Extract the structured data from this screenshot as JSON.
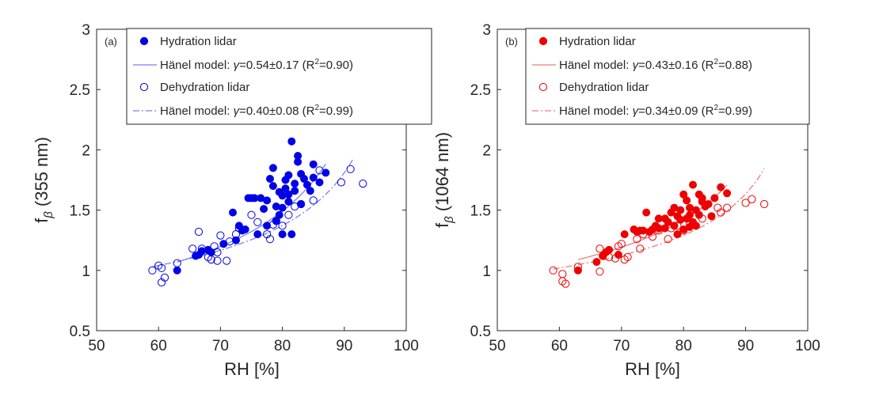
{
  "chart_data": [
    {
      "type": "scatter",
      "panel_label": "(a)",
      "color": "#0000e6",
      "line_color": "#7b7ef5",
      "xlabel": "RH [%]",
      "ylabel": "f",
      "ylabel_sub": "β",
      "ylabel_suffix": "(355 nm)",
      "xlim": [
        50,
        100
      ],
      "ylim": [
        0.5,
        3
      ],
      "xticks": [
        "50",
        "60",
        "70",
        "80",
        "90",
        "100"
      ],
      "yticks": [
        "0.5",
        "1",
        "1.5",
        "2",
        "2.5",
        "3"
      ],
      "legend_position": "top",
      "legend": {
        "hyd": "Hydration lidar",
        "hyd_fit_pre": "Hänel model: ",
        "hyd_fit_sym": "γ",
        "hyd_fit_post": "=0.54±0.17 (R",
        "hyd_fit_sup": "2",
        "hyd_fit_end": "=0.90)",
        "deh": "Dehydration lidar",
        "deh_fit_pre": "Hänel model: ",
        "deh_fit_sym": "γ",
        "deh_fit_post": "=0.40±0.08 (R",
        "deh_fit_sup": "2",
        "deh_fit_end": "=0.99)"
      },
      "series": [
        {
          "name": "Hydration lidar",
          "marker": "filled",
          "points": [
            [
              63,
              1.0
            ],
            [
              66,
              1.12
            ],
            [
              66.5,
              1.13
            ],
            [
              67,
              1.16
            ],
            [
              68,
              1.17
            ],
            [
              68.5,
              1.15
            ],
            [
              70.5,
              1.22
            ],
            [
              72,
              1.48
            ],
            [
              72.5,
              1.25
            ],
            [
              73,
              1.37
            ],
            [
              73.5,
              1.33
            ],
            [
              74,
              1.34
            ],
            [
              74.5,
              1.6
            ],
            [
              75.5,
              1.6
            ],
            [
              76,
              1.3
            ],
            [
              76.5,
              1.6
            ],
            [
              77,
              1.51
            ],
            [
              77.5,
              1.58
            ],
            [
              77.5,
              1.37
            ],
            [
              78,
              1.76
            ],
            [
              78.5,
              1.85
            ],
            [
              78.5,
              1.7
            ],
            [
              79,
              1.53
            ],
            [
              79,
              1.41
            ],
            [
              79.5,
              1.65
            ],
            [
              79.5,
              1.46
            ],
            [
              80,
              1.62
            ],
            [
              80,
              1.52
            ],
            [
              80,
              1.3
            ],
            [
              80.5,
              1.75
            ],
            [
              80.5,
              1.68
            ],
            [
              81,
              1.79
            ],
            [
              81,
              1.63
            ],
            [
              81,
              1.57
            ],
            [
              81.5,
              2.07
            ],
            [
              81.5,
              1.3
            ],
            [
              82,
              1.72
            ],
            [
              82,
              1.66
            ],
            [
              82.5,
              1.95
            ],
            [
              82.5,
              1.9
            ],
            [
              83,
              1.8
            ],
            [
              83,
              1.55
            ],
            [
              84,
              1.71
            ],
            [
              84.5,
              1.66
            ],
            [
              85,
              1.88
            ],
            [
              85,
              1.77
            ],
            [
              86,
              1.73
            ],
            [
              87,
              1.81
            ],
            [
              75,
              1.6
            ],
            [
              83.5,
              1.76
            ]
          ]
        },
        {
          "name": "Dehydration lidar",
          "marker": "open",
          "points": [
            [
              59,
              1.0
            ],
            [
              60,
              1.04
            ],
            [
              60.5,
              1.02
            ],
            [
              60.5,
              0.9
            ],
            [
              61,
              0.94
            ],
            [
              63,
              1.06
            ],
            [
              65.5,
              1.18
            ],
            [
              66.5,
              1.32
            ],
            [
              67,
              1.18
            ],
            [
              68,
              1.11
            ],
            [
              68.5,
              1.09
            ],
            [
              69,
              1.2
            ],
            [
              69.5,
              1.08
            ],
            [
              69.5,
              1.15
            ],
            [
              70,
              1.29
            ],
            [
              71,
              1.08
            ],
            [
              71.5,
              1.24
            ],
            [
              72.5,
              1.3
            ],
            [
              73,
              1.35
            ],
            [
              75,
              1.46
            ],
            [
              76,
              1.4
            ],
            [
              77.5,
              1.3
            ],
            [
              78,
              1.26
            ],
            [
              78.5,
              1.38
            ],
            [
              79,
              1.41
            ],
            [
              80,
              1.37
            ],
            [
              81,
              1.46
            ],
            [
              82,
              1.53
            ],
            [
              83,
              1.55
            ],
            [
              85,
              1.58
            ],
            [
              86,
              1.83
            ],
            [
              89.5,
              1.73
            ],
            [
              91,
              1.84
            ],
            [
              93,
              1.72
            ]
          ]
        }
      ],
      "fits": [
        {
          "name": "Hänel model hydration",
          "gamma": 0.54,
          "k": 1.12,
          "rh_ref": 66,
          "x_range": [
            63,
            87
          ],
          "style": "solid"
        },
        {
          "name": "Hänel model dehydration",
          "gamma": 0.4,
          "k": 1.04,
          "rh_ref": 60,
          "x_range": [
            59,
            91.5
          ],
          "style": "dashdot"
        }
      ]
    },
    {
      "type": "scatter",
      "panel_label": "(b)",
      "color": "#ee0000",
      "line_color": "#f07a7a",
      "xlabel": "RH [%]",
      "ylabel": "f",
      "ylabel_sub": "β",
      "ylabel_suffix": "(1064 nm)",
      "xlim": [
        50,
        100
      ],
      "ylim": [
        0.5,
        3
      ],
      "xticks": [
        "50",
        "60",
        "70",
        "80",
        "90",
        "100"
      ],
      "yticks": [
        "0.5",
        "1",
        "1.5",
        "2",
        "2.5",
        "3"
      ],
      "legend_position": "top",
      "legend": {
        "hyd": "Hydration lidar",
        "hyd_fit_pre": "Hänel model: ",
        "hyd_fit_sym": "γ",
        "hyd_fit_post": "=0.43±0.16 (R",
        "hyd_fit_sup": "2",
        "hyd_fit_end": "=0.88)",
        "deh": "Dehydration lidar",
        "deh_fit_pre": "Hänel model: ",
        "deh_fit_sym": "γ",
        "deh_fit_post": "=0.34±0.09 (R",
        "deh_fit_sup": "2",
        "deh_fit_end": "=0.99)"
      },
      "series": [
        {
          "name": "Hydration lidar",
          "marker": "filled",
          "points": [
            [
              63,
              1.0
            ],
            [
              66,
              1.07
            ],
            [
              67,
              1.12
            ],
            [
              67.5,
              1.15
            ],
            [
              68,
              1.17
            ],
            [
              69.5,
              1.13
            ],
            [
              70.5,
              1.3
            ],
            [
              72,
              1.34
            ],
            [
              72.5,
              1.32
            ],
            [
              73,
              1.33
            ],
            [
              73.5,
              1.33
            ],
            [
              74,
              1.48
            ],
            [
              74.5,
              1.32
            ],
            [
              75,
              1.34
            ],
            [
              76,
              1.35
            ],
            [
              76,
              1.43
            ],
            [
              77,
              1.35
            ],
            [
              77,
              1.43
            ],
            [
              77.5,
              1.4
            ],
            [
              78,
              1.48
            ],
            [
              78.5,
              1.52
            ],
            [
              78.5,
              1.37
            ],
            [
              79,
              1.45
            ],
            [
              79,
              1.3
            ],
            [
              79.5,
              1.5
            ],
            [
              79.5,
              1.42
            ],
            [
              80,
              1.63
            ],
            [
              80,
              1.34
            ],
            [
              80.5,
              1.58
            ],
            [
              80.5,
              1.43
            ],
            [
              81,
              1.52
            ],
            [
              81,
              1.46
            ],
            [
              81,
              1.36
            ],
            [
              81.5,
              1.71
            ],
            [
              81.5,
              1.4
            ],
            [
              82,
              1.5
            ],
            [
              82,
              1.37
            ],
            [
              82.5,
              1.63
            ],
            [
              82.5,
              1.46
            ],
            [
              83,
              1.6
            ],
            [
              83,
              1.57
            ],
            [
              83.5,
              1.53
            ],
            [
              84,
              1.55
            ],
            [
              84.5,
              1.45
            ],
            [
              85,
              1.6
            ],
            [
              86,
              1.69
            ],
            [
              87,
              1.64
            ],
            [
              75.5,
              1.37
            ]
          ]
        },
        {
          "name": "Dehydration lidar",
          "marker": "open",
          "points": [
            [
              59,
              1.0
            ],
            [
              60.5,
              0.97
            ],
            [
              60.5,
              0.91
            ],
            [
              61,
              0.89
            ],
            [
              63,
              1.03
            ],
            [
              66.5,
              0.99
            ],
            [
              66.5,
              1.18
            ],
            [
              67,
              1.12
            ],
            [
              68,
              1.11
            ],
            [
              69,
              1.1
            ],
            [
              69.5,
              1.2
            ],
            [
              70,
              1.22
            ],
            [
              70.5,
              1.09
            ],
            [
              71,
              1.11
            ],
            [
              72.5,
              1.26
            ],
            [
              73,
              1.18
            ],
            [
              73.5,
              1.3
            ],
            [
              75,
              1.28
            ],
            [
              76,
              1.33
            ],
            [
              77.5,
              1.26
            ],
            [
              78,
              1.35
            ],
            [
              79,
              1.37
            ],
            [
              80,
              1.33
            ],
            [
              81,
              1.38
            ],
            [
              83,
              1.43
            ],
            [
              85.5,
              1.52
            ],
            [
              86,
              1.48
            ],
            [
              87,
              1.52
            ],
            [
              90,
              1.56
            ],
            [
              91,
              1.59
            ],
            [
              93,
              1.55
            ]
          ]
        }
      ],
      "fits": [
        {
          "name": "Hänel model hydration",
          "gamma": 0.43,
          "k": 1.13,
          "rh_ref": 66,
          "x_range": [
            63,
            87
          ],
          "style": "solid"
        },
        {
          "name": "Hänel model dehydration",
          "gamma": 0.34,
          "k": 1.02,
          "rh_ref": 60,
          "x_range": [
            59,
            93
          ],
          "style": "dashdot"
        }
      ]
    }
  ]
}
